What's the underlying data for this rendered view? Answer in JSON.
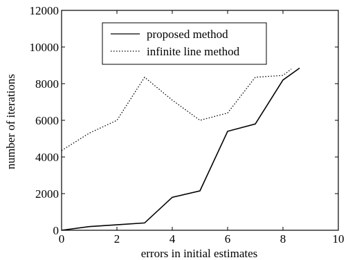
{
  "chart_data": {
    "type": "line",
    "title": "",
    "xlabel": "errors in initial estimates",
    "ylabel": "number of iterations",
    "xlim": [
      0,
      10
    ],
    "ylim": [
      0,
      12000
    ],
    "xticks": [
      0,
      2,
      4,
      6,
      8,
      10
    ],
    "yticks": [
      0,
      2000,
      4000,
      6000,
      8000,
      10000,
      12000
    ],
    "grid": false,
    "legend_position": "top-center",
    "series": [
      {
        "name": "proposed method",
        "style": "solid",
        "color": "#000000",
        "x": [
          0,
          1,
          2,
          3,
          4,
          5,
          6,
          7,
          8,
          8.6
        ],
        "y": [
          0,
          200,
          300,
          400,
          1800,
          2150,
          5400,
          5800,
          8200,
          8850
        ]
      },
      {
        "name": "infinite line method",
        "style": "dotted",
        "color": "#000000",
        "x": [
          0,
          1,
          2,
          3,
          4,
          5,
          6,
          7,
          8,
          8.3
        ],
        "y": [
          4350,
          5300,
          6000,
          8350,
          7100,
          6000,
          6400,
          8350,
          8450,
          8800
        ]
      }
    ]
  }
}
